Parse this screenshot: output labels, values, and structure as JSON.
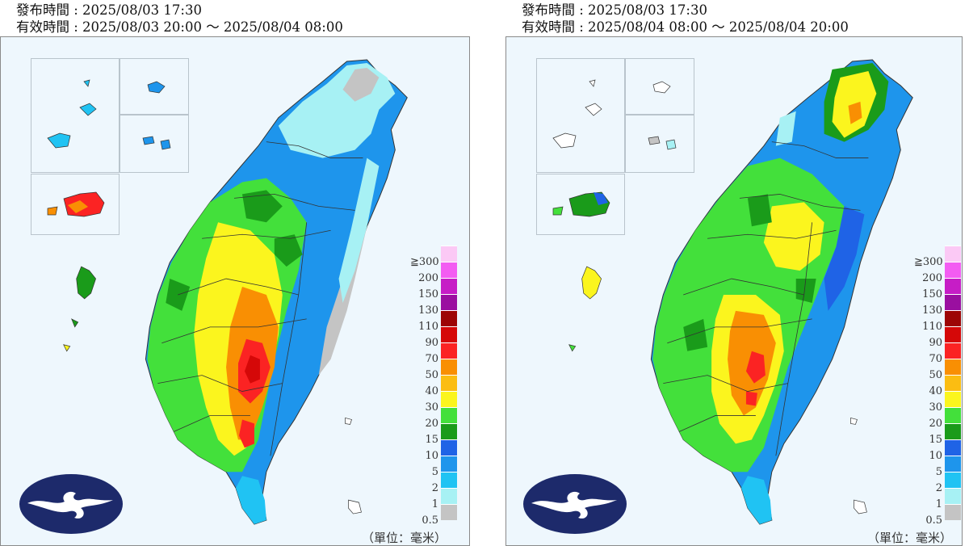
{
  "panels": [
    {
      "issue_time": "發布時間 : 2025/08/03 17:30",
      "valid_time": "有效時間 : 2025/08/03 20:00 ～ 2025/08/04 08:00"
    },
    {
      "issue_time": "發布時間 : 2025/08/03 17:30",
      "valid_time": "有效時間 : 2025/08/04 08:00 ～ 2025/08/04 20:00"
    }
  ],
  "unit_label": "（單位：毫米）",
  "legend": [
    {
      "label": "≧300",
      "color": "#fbc9f5"
    },
    {
      "label": "200",
      "color": "#f35cf2"
    },
    {
      "label": "150",
      "color": "#c61dc6"
    },
    {
      "label": "130",
      "color": "#9a0fa0"
    },
    {
      "label": "110",
      "color": "#9d0505"
    },
    {
      "label": "90",
      "color": "#d50808"
    },
    {
      "label": "70",
      "color": "#fb2323"
    },
    {
      "label": "50",
      "color": "#f98f03"
    },
    {
      "label": "40",
      "color": "#fbbd12"
    },
    {
      "label": "30",
      "color": "#fbf51e"
    },
    {
      "label": "20",
      "color": "#43e03b"
    },
    {
      "label": "15",
      "color": "#1a9b1a"
    },
    {
      "label": "10",
      "color": "#1f63e6"
    },
    {
      "label": "5",
      "color": "#1e95ec"
    },
    {
      "label": "2",
      "color": "#20c3f3"
    },
    {
      "label": "1",
      "color": "#a7f1f4"
    },
    {
      "label": "0.5",
      "color": "#c4c4c4"
    }
  ],
  "logo_icon": "cwa-cloud-logo-icon"
}
